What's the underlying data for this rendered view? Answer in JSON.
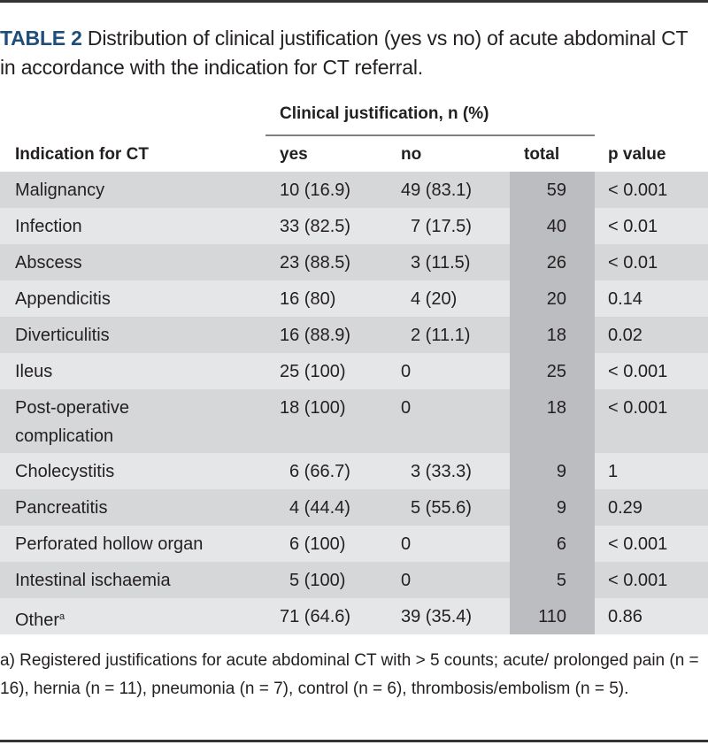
{
  "caption": {
    "label": "TABLE 2",
    "text": " Distribution of clinical justification (yes vs no) of acute abdominal CT in accordance with the indication for CT referral."
  },
  "table": {
    "group_header": "Clinical justification, n (%)",
    "columns": {
      "indication": "Indication for CT",
      "yes": "yes",
      "no": "no",
      "total": "total",
      "p_value": "p value"
    },
    "rows": [
      {
        "indication": "Malignancy",
        "sup": "",
        "yes": "10 (16.9)",
        "no": "49 (83.1)",
        "total": "59",
        "p_value": "< 0.001"
      },
      {
        "indication": "Infection",
        "sup": "",
        "yes": "33 (82.5)",
        "no": "7 (17.5)",
        "total": "40",
        "p_value": "< 0.01"
      },
      {
        "indication": "Abscess",
        "sup": "",
        "yes": "23 (88.5)",
        "no": "3 (11.5)",
        "total": "26",
        "p_value": "< 0.01"
      },
      {
        "indication": "Appendicitis",
        "sup": "",
        "yes": "16 (80)",
        "no": "4 (20)",
        "total": "20",
        "p_value": "0.14"
      },
      {
        "indication": "Diverticulitis",
        "sup": "",
        "yes": "16 (88.9)",
        "no": "2 (11.1)",
        "total": "18",
        "p_value": "0.02"
      },
      {
        "indication": "Ileus",
        "sup": "",
        "yes": "25 (100)",
        "no": "0",
        "total": "25",
        "p_value": "< 0.001"
      },
      {
        "indication": "Post-operative complication",
        "sup": "",
        "yes": "18 (100)",
        "no": "0",
        "total": "18",
        "p_value": "< 0.001"
      },
      {
        "indication": "Cholecystitis",
        "sup": "",
        "yes": "6 (66.7)",
        "no": "3 (33.3)",
        "total": "9",
        "p_value": "1"
      },
      {
        "indication": "Pancreatitis",
        "sup": "",
        "yes": "4 (44.4)",
        "no": "5 (55.6)",
        "total": "9",
        "p_value": "0.29"
      },
      {
        "indication": "Perforated hollow organ",
        "sup": "",
        "yes": "6 (100)",
        "no": "0",
        "total": "6",
        "p_value": "< 0.001"
      },
      {
        "indication": "Intestinal ischaemia",
        "sup": "",
        "yes": "5 (100)",
        "no": "0",
        "total": "5",
        "p_value": "< 0.001"
      },
      {
        "indication": "Other",
        "sup": "a",
        "yes": "71 (64.6)",
        "no": "39 (35.4)",
        "total": "110",
        "p_value": "0.86"
      }
    ]
  },
  "footnote": "a) Registered justifications for acute abdominal CT with > 5 counts; acute/ prolonged pain (n = 16), hernia (n = 11), pneumonia (n = 7), control (n = 6), thrombosis/embolism (n = 5)."
}
